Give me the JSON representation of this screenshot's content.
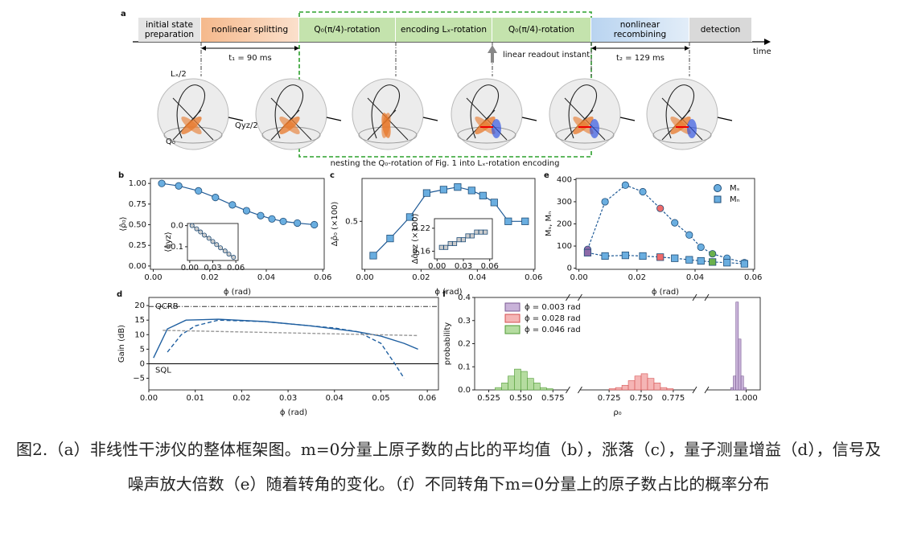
{
  "diagram": {
    "panel": "a",
    "stages": [
      "initial state preparation",
      "nonlinear splitting",
      "Q₀(π/4)-rotation",
      "encoding Lₓ-rotation",
      "Q₀(π/4)-rotation",
      "nonlinear recombining",
      "detection"
    ],
    "time_label": "time",
    "t1": "t₁ = 90 ms",
    "t2": "t₂ = 129 ms",
    "readout": "linear readout instant",
    "axis_labels": [
      "Lₓ/2",
      "Qyz/2",
      "Q₀"
    ],
    "nesting_note": "nesting the Q₀-rotation of Fig. 1 into Lₓ-rotation encoding"
  },
  "chart_data": [
    {
      "panel": "b",
      "type": "scatter",
      "xlabel": "ϕ (rad)",
      "ylabel": "⟨ρ̂₀⟩",
      "xlim": [
        -0.001,
        0.0605
      ],
      "xticks": [
        {
          "value": 0,
          "label": "0.00"
        },
        {
          "value": 0.02,
          "label": "0.02"
        },
        {
          "value": 0.04,
          "label": "0.04"
        },
        {
          "value": 0.06,
          "label": "0.06"
        }
      ],
      "ylim": [
        -0.04,
        1.06
      ],
      "yticks": [
        {
          "value": 0,
          "label": "0.00"
        },
        {
          "value": 0.25,
          "label": "0.25"
        },
        {
          "value": 0.5,
          "label": "0.50"
        },
        {
          "value": 0.75,
          "label": "0.75"
        },
        {
          "value": 1,
          "label": "1.00"
        }
      ],
      "series": [
        {
          "marker": "circle",
          "color": "#6aaee0",
          "line_color": "#1f5a96",
          "line_dash": false,
          "x": [
            0.003,
            0.009,
            0.016,
            0.022,
            0.028,
            0.033,
            0.038,
            0.042,
            0.046,
            0.051,
            0.057
          ],
          "values": [
            1.0,
            0.97,
            0.91,
            0.83,
            0.74,
            0.67,
            0.61,
            0.57,
            0.54,
            0.52,
            0.5
          ]
        }
      ],
      "inset": {
        "type": "scatter",
        "ylabel": "⟨q̂yz⟩",
        "xlim": [
          -0.003,
          0.063
        ],
        "xticks": [
          {
            "value": 0,
            "label": "0.00"
          },
          {
            "value": 0.03,
            "label": "0.03"
          },
          {
            "value": 0.06,
            "label": "0.06"
          }
        ],
        "ylim": [
          -0.165,
          0.01
        ],
        "yticks": [
          {
            "value": 0,
            "label": "0.0"
          },
          {
            "value": -0.1,
            "label": "−0.1"
          }
        ],
        "series": [
          {
            "marker": "circle",
            "color": "#cccccc",
            "line_color": "#555555",
            "line_dash": false,
            "x": [
              0.003,
              0.009,
              0.014,
              0.019,
              0.025,
              0.03,
              0.035,
              0.04,
              0.046,
              0.051,
              0.057
            ],
            "values": [
              0,
              -0.015,
              -0.03,
              -0.045,
              -0.06,
              -0.075,
              -0.09,
              -0.105,
              -0.12,
              -0.135,
              -0.15
            ]
          }
        ]
      }
    },
    {
      "panel": "c",
      "type": "scatter",
      "xlabel": "ϕ (rad)",
      "ylabel": "Δρ̂₀ (×100)",
      "xlim": [
        -0.001,
        0.0605
      ],
      "xticks": [
        {
          "value": 0,
          "label": "0.00"
        },
        {
          "value": 0.02,
          "label": "0.02"
        },
        {
          "value": 0.04,
          "label": "0.04"
        },
        {
          "value": 0.06,
          "label": "0.06"
        }
      ],
      "ylim": [
        -0.06,
        1.0
      ],
      "yticks": [
        0.5
      ],
      "series": [
        {
          "marker": "square",
          "color": "#6aaee0",
          "line_color": "#1f5a96",
          "line_dash": false,
          "x": [
            0.003,
            0.009,
            0.016,
            0.022,
            0.028,
            0.033,
            0.038,
            0.042,
            0.046,
            0.051,
            0.057
          ],
          "values": [
            0.1,
            0.3,
            0.55,
            0.83,
            0.87,
            0.9,
            0.86,
            0.8,
            0.72,
            0.5,
            0.5
          ]
        }
      ],
      "inset": {
        "type": "scatter",
        "ylabel": "Δq̂yz (×100)",
        "xlim": [
          -0.003,
          0.063
        ],
        "xticks": [
          {
            "value": 0,
            "label": "0.00"
          },
          {
            "value": 0.03,
            "label": "0.03"
          },
          {
            "value": 0.06,
            "label": "0.06"
          }
        ],
        "ylim": [
          0.14,
          0.245
        ],
        "yticks": [
          0.16,
          0.22
        ],
        "series": [
          {
            "marker": "square",
            "color": "#cccccc",
            "line_color": "#555555",
            "line_dash": false,
            "x": [
              0.005,
              0.01,
              0.015,
              0.02,
              0.025,
              0.03,
              0.035,
              0.04,
              0.045,
              0.05,
              0.055
            ],
            "values": [
              0.17,
              0.17,
              0.18,
              0.18,
              0.19,
              0.19,
              0.2,
              0.2,
              0.21,
              0.21,
              0.21
            ]
          }
        ]
      }
    },
    {
      "panel": "e",
      "type": "scatter",
      "xlabel": "ϕ (rad)",
      "ylabel": "Mₛ, Mₙ",
      "xlim": [
        -0.001,
        0.0605
      ],
      "xticks": [
        {
          "value": 0,
          "label": "0.00"
        },
        {
          "value": 0.02,
          "label": "0.02"
        },
        {
          "value": 0.04,
          "label": "0.04"
        },
        {
          "value": 0.06,
          "label": "0.06"
        }
      ],
      "ylim": [
        -5,
        405
      ],
      "yticks": [
        0,
        100,
        200,
        300,
        400
      ],
      "legend": "upper right",
      "series": [
        {
          "name": "Mₛ",
          "marker": "circle",
          "color": "#6aaee0",
          "line_color": "#1f5a96",
          "line_dash": true,
          "point_colors": [
            "#8d6aa8",
            "#6aaee0",
            "#6aaee0",
            "#6aaee0",
            "#ee6a6a",
            "#6aaee0",
            "#6aaee0",
            "#6aaee0",
            "#6ab04c",
            "#6aaee0",
            "#6aaee0"
          ],
          "x": [
            0.003,
            0.009,
            0.016,
            0.022,
            0.028,
            0.033,
            0.038,
            0.042,
            0.046,
            0.051,
            0.057
          ],
          "values": [
            85,
            300,
            375,
            345,
            270,
            205,
            150,
            95,
            65,
            45,
            25
          ]
        },
        {
          "name": "Mₙ",
          "marker": "square",
          "color": "#6aaee0",
          "line_color": "#1f5a96",
          "line_dash": true,
          "point_colors": [
            "#8d6aa8",
            "#6aaee0",
            "#6aaee0",
            "#6aaee0",
            "#ee6a6a",
            "#6aaee0",
            "#6aaee0",
            "#6aaee0",
            "#6ab04c",
            "#6aaee0",
            "#6aaee0"
          ],
          "x": [
            0.003,
            0.009,
            0.016,
            0.022,
            0.028,
            0.033,
            0.038,
            0.042,
            0.046,
            0.051,
            0.057
          ],
          "values": [
            70,
            55,
            58,
            55,
            50,
            45,
            38,
            33,
            28,
            25,
            20
          ]
        }
      ]
    },
    {
      "panel": "d",
      "type": "line",
      "xlabel": "ϕ (rad)",
      "ylabel": "Gain (dB)",
      "xlim": [
        0,
        0.0624
      ],
      "xticks": [
        {
          "value": 0,
          "label": "0.00"
        },
        {
          "value": 0.01,
          "label": "0.01"
        },
        {
          "value": 0.02,
          "label": "0.02"
        },
        {
          "value": 0.03,
          "label": "0.03"
        },
        {
          "value": 0.04,
          "label": "0.04"
        },
        {
          "value": 0.05,
          "label": "0.05"
        },
        {
          "value": 0.06,
          "label": "0.06"
        }
      ],
      "ylim": [
        -9,
        22.8
      ],
      "yticks": [
        {
          "value": -5,
          "label": "−5"
        },
        0,
        5,
        10,
        15,
        20
      ],
      "reference_lines": [
        {
          "value": 19.7,
          "label": "QCRB",
          "dash": "6 2 1 2",
          "color": "#333333"
        },
        {
          "value": 0,
          "label": "SQL",
          "dash": "none",
          "color": "#000000"
        }
      ],
      "series": [
        {
          "color": "#1f5fa0",
          "dash": "none",
          "x": [
            0.001,
            0.004,
            0.008,
            0.015,
            0.025,
            0.035,
            0.045,
            0.05,
            0.055,
            0.058
          ],
          "values": [
            2,
            12,
            15,
            15.3,
            14.5,
            13,
            11,
            9.5,
            7,
            5
          ]
        },
        {
          "color": "#1f5fa0",
          "dash": "5 3",
          "x": [
            0.004,
            0.007,
            0.01,
            0.015,
            0.025,
            0.035,
            0.04,
            0.045,
            0.05,
            0.053,
            0.055
          ],
          "values": [
            4,
            10,
            13,
            15,
            14.5,
            13,
            12.3,
            11,
            7,
            0,
            -5
          ]
        },
        {
          "color": "#999999",
          "dash": "4 2",
          "x": [
            0.003,
            0.058
          ],
          "values": [
            11.5,
            9.7
          ]
        }
      ]
    },
    {
      "panel": "f",
      "type": "histogram",
      "xlabel": "ρ₀",
      "ylabel": "probability",
      "legend": "upper left",
      "segments": [
        {
          "xlim": [
            0.514,
            0.587
          ],
          "xticks": [
            {
              "value": 0.525,
              "label": "0.525"
            },
            {
              "value": 0.55,
              "label": "0.550"
            },
            {
              "value": 0.575,
              "label": "0.575"
            }
          ]
        },
        {
          "xlim": [
            0.702,
            0.792
          ],
          "xticks": [
            {
              "value": 0.725,
              "label": "0.725"
            },
            {
              "value": 0.75,
              "label": "0.750"
            },
            {
              "value": 0.775,
              "label": "0.775"
            }
          ]
        },
        {
          "xlim": [
            0.969,
            1.011
          ],
          "xticks": [
            {
              "value": 1.0,
              "label": "1.000"
            }
          ]
        }
      ],
      "ylim": [
        0,
        0.4
      ],
      "yticks": [
        {
          "value": 0,
          "label": "0.0"
        },
        0.1,
        0.2,
        0.3,
        0.4
      ],
      "series": [
        {
          "name": "ϕ = 0.003 rad",
          "color": "#c9b3d9",
          "edge": "#7a5a93",
          "bins": [
            0.988,
            0.99,
            0.992,
            0.994,
            0.996,
            0.998,
            1.0
          ],
          "values": [
            0.01,
            0.06,
            0.38,
            0.22,
            0.06,
            0.01
          ]
        },
        {
          "name": "ϕ = 0.028 rad",
          "color": "#f5b5b5",
          "edge": "#d45050",
          "bins": [
            0.725,
            0.73,
            0.735,
            0.74,
            0.745,
            0.75,
            0.755,
            0.76,
            0.765,
            0.77,
            0.775
          ],
          "values": [
            0.005,
            0.01,
            0.02,
            0.04,
            0.06,
            0.07,
            0.05,
            0.03,
            0.01,
            0.005
          ]
        },
        {
          "name": "ϕ = 0.046 rad",
          "color": "#b5dca0",
          "edge": "#4f9a35",
          "bins": [
            0.53,
            0.535,
            0.54,
            0.545,
            0.55,
            0.555,
            0.56,
            0.565,
            0.57,
            0.575
          ],
          "values": [
            0.01,
            0.03,
            0.06,
            0.09,
            0.08,
            0.05,
            0.03,
            0.01,
            0.005
          ]
        }
      ]
    }
  ],
  "caption": "图2.（a）非线性干涉仪的整体框架图。m=0分量上原子数的占比的平均值（b），涨落（c），量子测量增益（d），信号及噪声放大倍数（e）随着转角的变化。（f）不同转角下m=0分量上的原子数占比的概率分布"
}
